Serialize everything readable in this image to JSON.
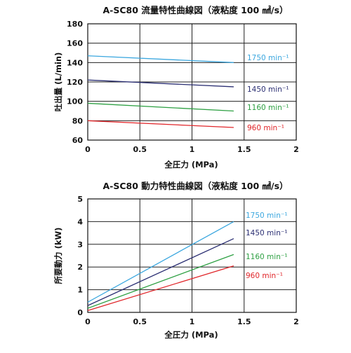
{
  "chart_data": [
    {
      "type": "line",
      "title": "A-SC80 流量特性曲線図（液粘度 100 ㎟/s）",
      "xlabel": "全圧力 (MPa)",
      "ylabel": "吐出量 (L/min)",
      "xlim": [
        0,
        2
      ],
      "ylim": [
        60,
        180
      ],
      "x_ticks": [
        "0",
        "0.5",
        "1",
        "1.5",
        "2"
      ],
      "y_ticks": [
        "60",
        "80",
        "100",
        "120",
        "140",
        "160",
        "180"
      ],
      "grid": true,
      "series": [
        {
          "name": "1750 min⁻¹",
          "color": "#3ba7df",
          "x": [
            0,
            1.4
          ],
          "y": [
            147,
            140
          ]
        },
        {
          "name": "1450 min⁻¹",
          "color": "#2b2f73",
          "x": [
            0,
            1.4
          ],
          "y": [
            122,
            115
          ]
        },
        {
          "name": "1160 min⁻¹",
          "color": "#2ea043",
          "x": [
            0,
            1.4
          ],
          "y": [
            98,
            90
          ]
        },
        {
          "name": "960 min⁻¹",
          "color": "#e0262a",
          "x": [
            0,
            1.4
          ],
          "y": [
            80,
            73
          ]
        }
      ]
    },
    {
      "type": "line",
      "title": "A-SC80 動力特性曲線図（液粘度 100 ㎟/s）",
      "xlabel": "全圧力 (MPa)",
      "ylabel": "所要動力 (kW)",
      "xlim": [
        0,
        2
      ],
      "ylim": [
        0,
        5
      ],
      "x_ticks": [
        "0",
        "0.5",
        "1",
        "1.5",
        "2"
      ],
      "y_ticks": [
        "0",
        "1",
        "2",
        "3",
        "4",
        "5"
      ],
      "grid": true,
      "series": [
        {
          "name": "1750 min⁻¹",
          "color": "#3ba7df",
          "x": [
            0,
            1.4
          ],
          "y": [
            0.45,
            4.0
          ]
        },
        {
          "name": "1450 min⁻¹",
          "color": "#2b2f73",
          "x": [
            0,
            1.4
          ],
          "y": [
            0.3,
            3.25
          ]
        },
        {
          "name": "1160 min⁻¹",
          "color": "#2ea043",
          "x": [
            0,
            1.4
          ],
          "y": [
            0.18,
            2.55
          ]
        },
        {
          "name": "960 min⁻¹",
          "color": "#e0262a",
          "x": [
            0,
            1.4
          ],
          "y": [
            0.08,
            2.05
          ]
        }
      ]
    }
  ]
}
